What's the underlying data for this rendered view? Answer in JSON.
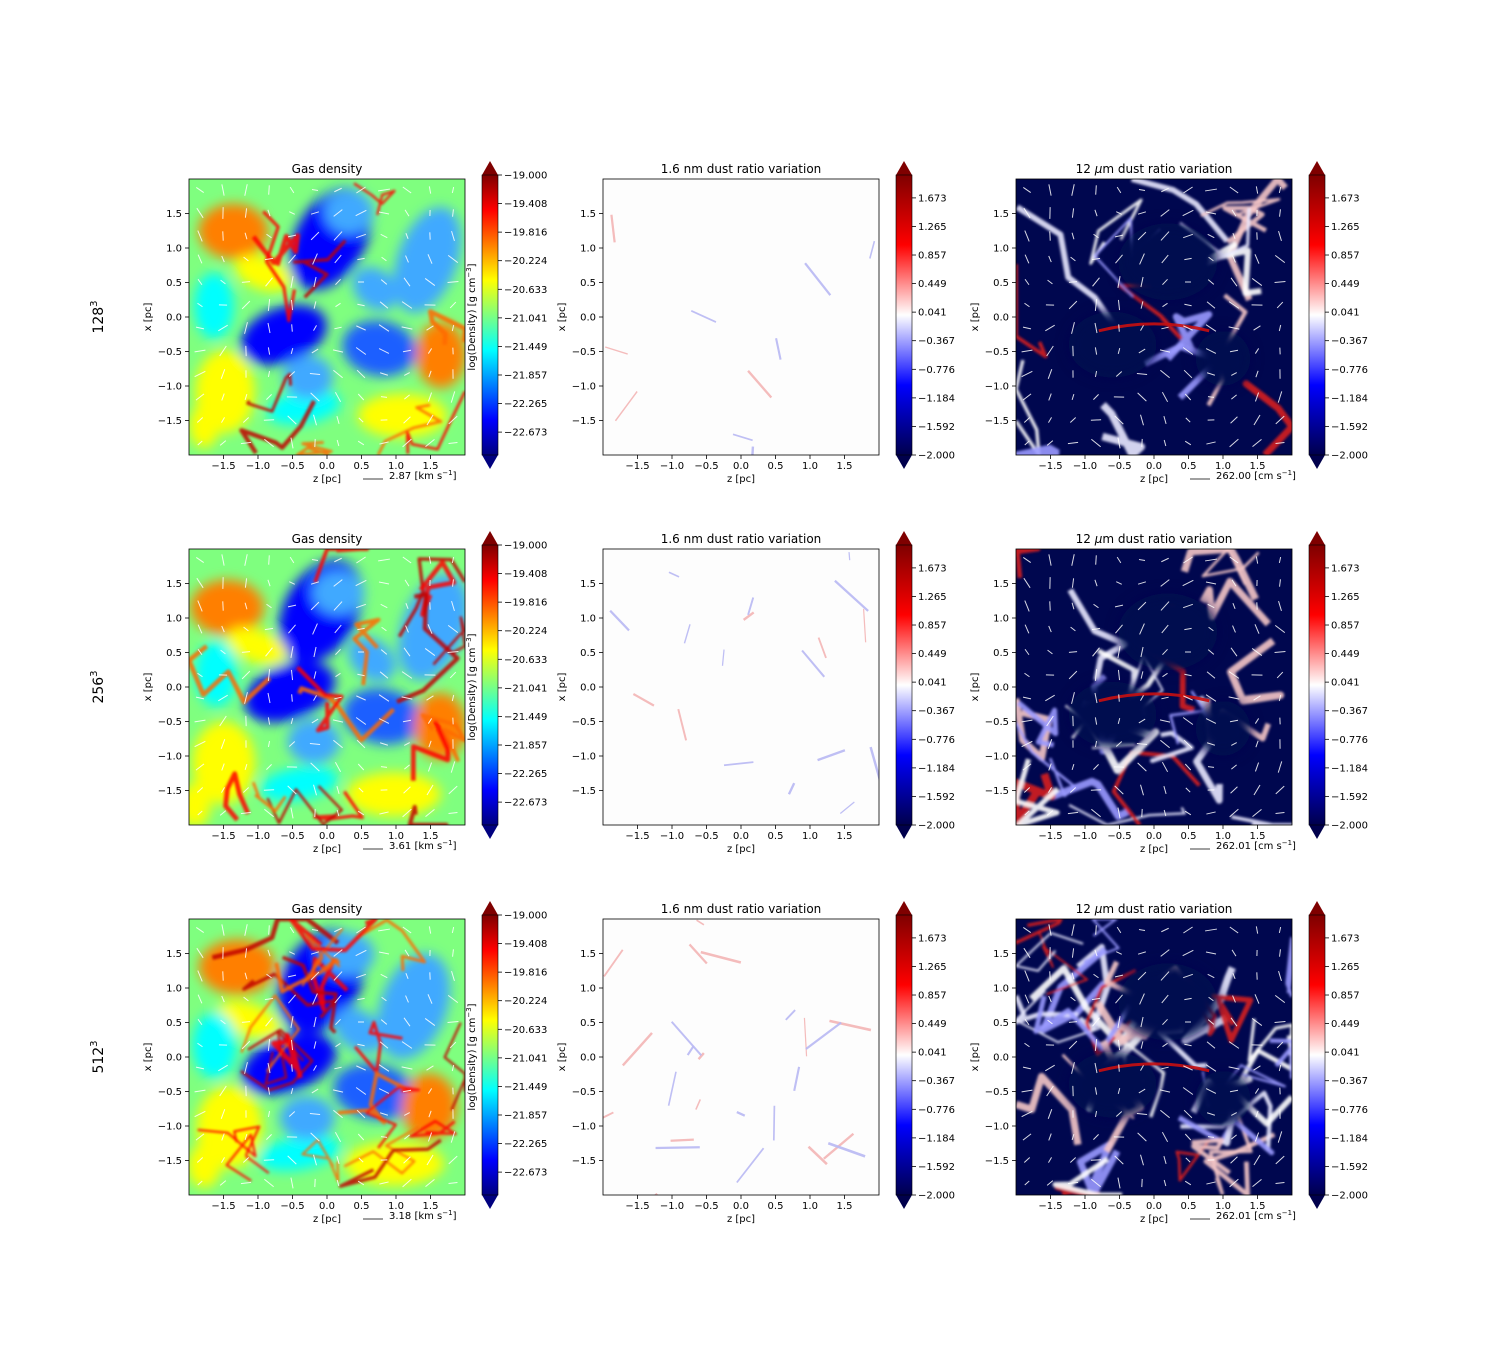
{
  "figure": {
    "row_labels": [
      {
        "base": "128",
        "sup": "3"
      },
      {
        "base": "256",
        "sup": "3"
      },
      {
        "base": "512",
        "sup": "3"
      }
    ],
    "ticks": [
      "−1.5",
      "−1.0",
      "−0.5",
      "0.0",
      "0.5",
      "1.0",
      "1.5"
    ],
    "tick_values": [
      -1.5,
      -1.0,
      -0.5,
      0.0,
      0.5,
      1.0,
      1.5
    ],
    "xlabel": "z [pc]",
    "ylabel": "x [pc]",
    "columns": [
      {
        "title": "Gas density",
        "title_parts": [
          "Gas density"
        ],
        "colormap": "jet",
        "colorbar_label": "log(Density) [g cm",
        "colorbar_label_sup": "−3",
        "colorbar_label_end": "]",
        "colorbar_ticks": [
          "−19.000",
          "−19.408",
          "−19.816",
          "−20.224",
          "−20.633",
          "−21.041",
          "−21.449",
          "−21.857",
          "−22.265",
          "−22.673"
        ],
        "colorbar_tick_values": [
          -19.0,
          -19.408,
          -19.816,
          -20.224,
          -20.633,
          -21.041,
          -21.449,
          -21.857,
          -22.265,
          -22.673
        ],
        "colorbar_range": [
          -23.0,
          -19.0
        ]
      },
      {
        "title": "1.6 nm dust ratio variation",
        "title_parts": [
          "1.6 nm dust ratio variation"
        ],
        "colormap": "seismic",
        "colorbar_ticks": [
          "1.673",
          "1.265",
          "0.857",
          "0.449",
          "0.041",
          "−0.367",
          "−0.776",
          "−1.184",
          "−1.592",
          "−2.000"
        ],
        "colorbar_tick_values": [
          1.673,
          1.265,
          0.857,
          0.449,
          0.041,
          -0.367,
          -0.776,
          -1.184,
          -1.592,
          -2.0
        ],
        "colorbar_range": [
          -2.0,
          2.0
        ]
      },
      {
        "title": "12 μm  dust ratio variation",
        "title_parts": [
          "12 ",
          "μ",
          "m  dust ratio variation"
        ],
        "colormap": "seismic",
        "colorbar_ticks": [
          "1.673",
          "1.265",
          "0.857",
          "0.449",
          "0.041",
          "−0.367",
          "−0.776",
          "−1.184",
          "−1.592",
          "−2.000"
        ],
        "colorbar_tick_values": [
          1.673,
          1.265,
          0.857,
          0.449,
          0.041,
          -0.367,
          -0.776,
          -1.184,
          -1.592,
          -2.0
        ],
        "colorbar_range": [
          -2.0,
          2.0
        ]
      }
    ],
    "quiver_keys": [
      [
        "2.87 [km s",
        "−1",
        "]"
      ],
      [
        "262.00 [cm s",
        "−1",
        "]"
      ],
      [
        "3.61 [km s",
        "−1",
        "]"
      ],
      [
        "262.01 [cm s",
        "−1",
        "]"
      ],
      [
        "3.18 [km s",
        "−1",
        "]"
      ],
      [
        "262.01 [cm s",
        "−1",
        "]"
      ]
    ],
    "colors": {
      "jet": [
        "#00007f",
        "#0000ff",
        "#007fff",
        "#00ffff",
        "#7fff7f",
        "#ffff00",
        "#ff7f00",
        "#ff0000",
        "#7f0000"
      ],
      "seismic": [
        "#00004c",
        "#0000ff",
        "#ffffff",
        "#ff0000",
        "#7f0000"
      ],
      "arrow": "#ffffff",
      "background": "#ffffff"
    }
  },
  "chart_data": [
    {
      "type": "heatmap",
      "row": "128^3",
      "title": "Gas density",
      "xlabel": "z [pc]",
      "ylabel": "x [pc]",
      "xlim": [
        -2,
        2
      ],
      "ylim": [
        -2,
        2
      ],
      "colorbar": "log(Density) [g cm^-3]",
      "crange": [
        -23,
        -19
      ],
      "quiver_key": "2.87 [km s^-1]"
    },
    {
      "type": "heatmap",
      "row": "128^3",
      "title": "1.6 nm dust ratio variation",
      "xlabel": "z [pc]",
      "ylabel": "x [pc]",
      "xlim": [
        -2,
        2
      ],
      "ylim": [
        -2,
        2
      ],
      "crange": [
        -2,
        2
      ],
      "mostly": 0.0
    },
    {
      "type": "heatmap",
      "row": "128^3",
      "title": "12 μm dust ratio variation",
      "xlabel": "z [pc]",
      "ylabel": "x [pc]",
      "xlim": [
        -2,
        2
      ],
      "ylim": [
        -2,
        2
      ],
      "crange": [
        -2,
        2
      ],
      "quiver_key": "262.00 [cm s^-1]"
    },
    {
      "type": "heatmap",
      "row": "256^3",
      "title": "Gas density",
      "xlabel": "z [pc]",
      "ylabel": "x [pc]",
      "xlim": [
        -2,
        2
      ],
      "ylim": [
        -2,
        2
      ],
      "colorbar": "log(Density) [g cm^-3]",
      "crange": [
        -23,
        -19
      ],
      "quiver_key": "3.61 [km s^-1]"
    },
    {
      "type": "heatmap",
      "row": "256^3",
      "title": "1.6 nm dust ratio variation",
      "xlabel": "z [pc]",
      "ylabel": "x [pc]",
      "xlim": [
        -2,
        2
      ],
      "ylim": [
        -2,
        2
      ],
      "crange": [
        -2,
        2
      ],
      "mostly": 0.0
    },
    {
      "type": "heatmap",
      "row": "256^3",
      "title": "12 μm dust ratio variation",
      "xlabel": "z [pc]",
      "ylabel": "x [pc]",
      "xlim": [
        -2,
        2
      ],
      "ylim": [
        -2,
        2
      ],
      "crange": [
        -2,
        2
      ],
      "quiver_key": "262.01 [cm s^-1]"
    },
    {
      "type": "heatmap",
      "row": "512^3",
      "title": "Gas density",
      "xlabel": "z [pc]",
      "ylabel": "x [pc]",
      "xlim": [
        -2,
        2
      ],
      "ylim": [
        -2,
        2
      ],
      "colorbar": "log(Density) [g cm^-3]",
      "crange": [
        -23,
        -19
      ],
      "quiver_key": "3.18 [km s^-1]"
    },
    {
      "type": "heatmap",
      "row": "512^3",
      "title": "1.6 nm dust ratio variation",
      "xlabel": "z [pc]",
      "ylabel": "x [pc]",
      "xlim": [
        -2,
        2
      ],
      "ylim": [
        -2,
        2
      ],
      "crange": [
        -2,
        2
      ],
      "mostly": 0.0
    },
    {
      "type": "heatmap",
      "row": "512^3",
      "title": "12 μm dust ratio variation",
      "xlabel": "z [pc]",
      "ylabel": "x [pc]",
      "xlim": [
        -2,
        2
      ],
      "ylim": [
        -2,
        2
      ],
      "crange": [
        -2,
        2
      ],
      "quiver_key": "262.01 [cm s^-1]"
    }
  ]
}
